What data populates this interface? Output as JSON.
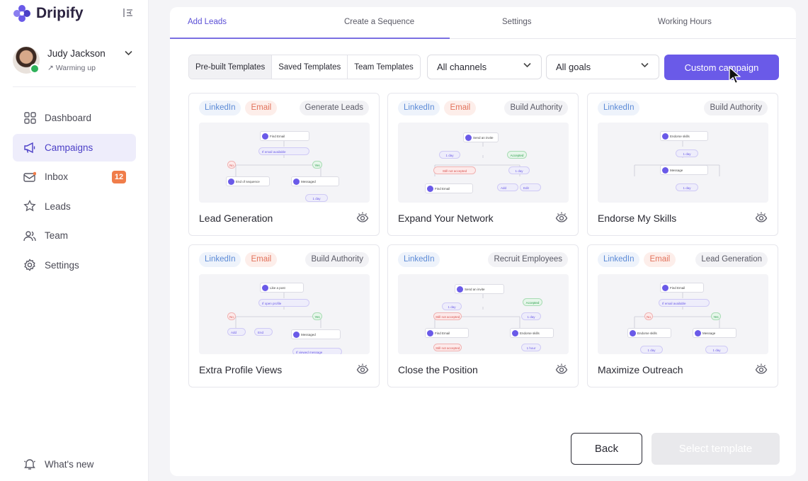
{
  "brand": {
    "name": "Dripify",
    "accent": "#6a5ae8"
  },
  "user": {
    "name": "Judy Jackson",
    "status": "Warming up"
  },
  "nav": {
    "items": [
      {
        "label": "Dashboard",
        "icon": "dashboard-icon"
      },
      {
        "label": "Campaigns",
        "icon": "megaphone-icon",
        "active": true
      },
      {
        "label": "Inbox",
        "icon": "inbox-icon",
        "badge": "12"
      },
      {
        "label": "Leads",
        "icon": "leads-star-icon"
      },
      {
        "label": "Team",
        "icon": "team-icon"
      },
      {
        "label": "Settings",
        "icon": "gear-icon"
      }
    ],
    "whats_new": "What's new"
  },
  "tabs": [
    "Add Leads",
    "Create a Sequence",
    "Settings",
    "Working Hours"
  ],
  "template_tabs": [
    "Pre-built Templates",
    "Saved Templates",
    "Team Templates"
  ],
  "filters": {
    "channels": "All channels",
    "goals": "All goals"
  },
  "custom_campaign": "Custom campaign",
  "cards": [
    {
      "title": "Lead Generation",
      "tags": [
        "LinkedIn",
        "Email"
      ],
      "goal": "Generate Leads",
      "flow": [
        "Find Email",
        "If email available",
        "No",
        "Yes",
        "End of sequence",
        "Messaged",
        "1 day"
      ]
    },
    {
      "title": "Expand Your Network",
      "tags": [
        "LinkedIn",
        "Email"
      ],
      "goal": "Build Authority",
      "flow": [
        "Send an invite",
        "1 day",
        "Accepted",
        "Still not accepted",
        "1 day",
        "Find Email",
        "Add",
        "Edit"
      ]
    },
    {
      "title": "Endorse My Skills",
      "tags": [
        "LinkedIn"
      ],
      "goal": "Build Authority",
      "flow": [
        "Endorse skills",
        "1 day",
        "Message",
        "1 day"
      ]
    },
    {
      "title": "Extra Profile Views",
      "tags": [
        "LinkedIn",
        "Email"
      ],
      "goal": "Build Authority",
      "flow": [
        "Like a post",
        "If open profile",
        "No",
        "Yes",
        "Add",
        "End",
        "Messaged",
        "If viewed message"
      ]
    },
    {
      "title": "Close the Position",
      "tags": [
        "LinkedIn"
      ],
      "goal": "Recruit Employees",
      "flow": [
        "Send an invite",
        "1 day",
        "Accepted",
        "Still not accepted",
        "1 day",
        "Find Email",
        "Endorse skills",
        "1 day",
        "Still not accepted",
        "1 hour"
      ]
    },
    {
      "title": "Maximize Outreach",
      "tags": [
        "LinkedIn",
        "Email"
      ],
      "goal": "Lead Generation",
      "flow": [
        "Find Email",
        "If email available",
        "No",
        "Yes",
        "Endorse skills",
        "Message",
        "1 day",
        "1 day"
      ]
    }
  ],
  "footer": {
    "back": "Back",
    "select": "Select template"
  }
}
